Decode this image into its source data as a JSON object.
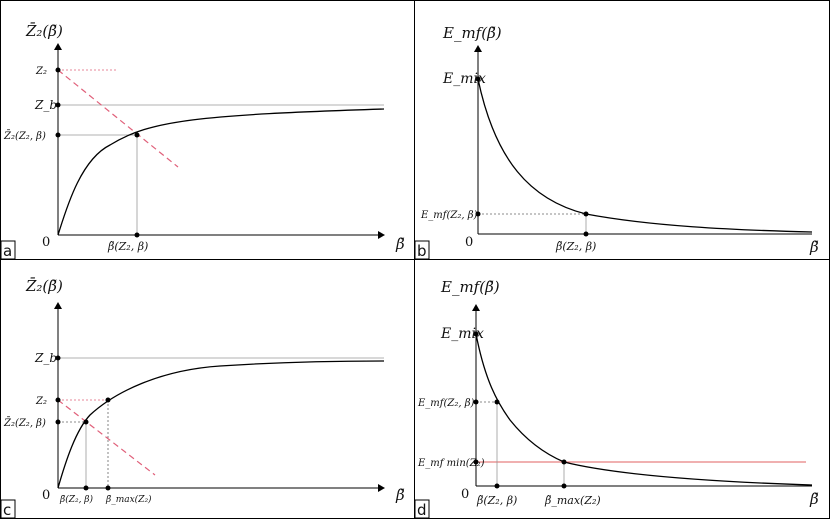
{
  "panels": {
    "a": {
      "tag": "a",
      "y_axis_label": "Z̄₂(β̃)",
      "x_axis_label": "β̃",
      "origin": "0",
      "y_labels": {
        "z2": "Z₂",
        "zb": "Z_b",
        "zbar": "Z̄₂(Z₂, β)"
      },
      "x_labels": {
        "btilde": "β̃(Z₂, β)"
      }
    },
    "b": {
      "tag": "b",
      "y_axis_label": "E_mf(β̃)",
      "x_axis_label": "β̃",
      "origin": "0",
      "y_labels": {
        "emix": "E_mix",
        "emf": "E_mf(Z₂, β)"
      },
      "x_labels": {
        "btilde": "β̃(Z₂, β)"
      }
    },
    "c": {
      "tag": "c",
      "y_axis_label": "Z̄₂(β̃)",
      "x_axis_label": "β̃",
      "origin": "0",
      "y_labels": {
        "zb": "Z_b",
        "z2": "Z₂",
        "zbar": "Z̄₂(Z₂, β)"
      },
      "x_labels": {
        "btilde": "β̃(Z₂, β)",
        "bmax": "β̃_max(Z₂)"
      }
    },
    "d": {
      "tag": "d",
      "y_axis_label": "E_mf(β̃)",
      "x_axis_label": "β̃",
      "origin": "0",
      "y_labels": {
        "emix": "E_mix",
        "emf": "E_mf(Z₂, β)",
        "emfmin": "E_mf min(Z₂)"
      },
      "x_labels": {
        "btilde": "β̃(Z₂, β)",
        "bmax": "β̃_max(Z₂)"
      }
    }
  },
  "colors": {
    "curve": "#000000",
    "guide": "#999999",
    "dashed_red": "#e0607a",
    "red_line": "#e06060",
    "frame": "#000000"
  }
}
